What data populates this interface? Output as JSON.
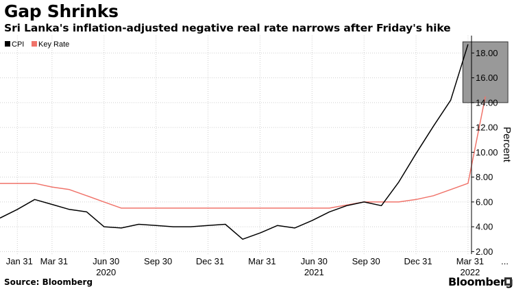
{
  "header": {
    "title": "Gap Shrinks",
    "subtitle": "Sri Lanka's inflation-adjusted negative real rate narrows after Friday's hike"
  },
  "footer": {
    "source": "Source: Bloomberg",
    "brand": "Bloomberg"
  },
  "colors": {
    "cpi": "#000000",
    "key_rate": "#f0736a",
    "highlight": "#999999"
  },
  "chart_data": {
    "type": "line",
    "title": "Gap Shrinks",
    "xlabel": "",
    "ylabel": "Percent",
    "ylim": [
      1.8,
      19.4
    ],
    "yticks": [
      "2.00",
      "4.00",
      "6.00",
      "8.00",
      "10.00",
      "12.00",
      "14.00",
      "16.00",
      "18.00"
    ],
    "ytick_values": [
      2,
      4,
      6,
      8,
      10,
      12,
      14,
      16,
      18
    ],
    "xlim": [
      0,
      27.2
    ],
    "x_ticks": [
      {
        "pos": 1,
        "label": "Jan 31",
        "year": ""
      },
      {
        "pos": 3,
        "label": "Mar 31",
        "year": ""
      },
      {
        "pos": 6,
        "label": "Jun 30",
        "year": "2020"
      },
      {
        "pos": 9,
        "label": "Sep 30",
        "year": ""
      },
      {
        "pos": 12,
        "label": "Dec 31",
        "year": ""
      },
      {
        "pos": 15,
        "label": "Mar 31",
        "year": ""
      },
      {
        "pos": 18,
        "label": "Jun 30",
        "year": "2021"
      },
      {
        "pos": 21,
        "label": "Sep 30",
        "year": ""
      },
      {
        "pos": 24,
        "label": "Dec 31",
        "year": ""
      },
      {
        "pos": 27,
        "label": "Mar 31",
        "year": "2022"
      },
      {
        "pos": 29,
        "label": "...",
        "year": ""
      }
    ],
    "legend": [
      "CPI",
      "Key Rate"
    ],
    "legend_position": "top-left",
    "series": [
      {
        "name": "CPI",
        "x": [
          0,
          1,
          2,
          3,
          4,
          5,
          6,
          7,
          8,
          9,
          10,
          11,
          12,
          13,
          14,
          15,
          16,
          17,
          18,
          19,
          20,
          21,
          22,
          23,
          24,
          25,
          26,
          27
        ],
        "values": [
          4.7,
          5.4,
          6.2,
          5.8,
          5.4,
          5.2,
          4.0,
          3.9,
          4.2,
          4.1,
          4.0,
          4.0,
          4.1,
          4.2,
          3.0,
          3.5,
          4.1,
          3.9,
          4.5,
          5.2,
          5.7,
          6.0,
          5.7,
          7.6,
          9.9,
          12.1,
          14.2,
          18.7
        ]
      },
      {
        "name": "Key Rate",
        "x": [
          0,
          1,
          2,
          3,
          4,
          5,
          6,
          7,
          8,
          9,
          10,
          11,
          12,
          13,
          14,
          15,
          16,
          17,
          18,
          19,
          20,
          21,
          22,
          23,
          24,
          25,
          26,
          27,
          28
        ],
        "values": [
          7.5,
          7.5,
          7.5,
          7.2,
          7.0,
          6.5,
          6.0,
          5.5,
          5.5,
          5.5,
          5.5,
          5.5,
          5.5,
          5.5,
          5.5,
          5.5,
          5.5,
          5.5,
          5.5,
          5.5,
          5.75,
          6.0,
          6.0,
          6.0,
          6.2,
          6.5,
          7.0,
          7.5,
          14.5
        ]
      }
    ],
    "highlight_box": {
      "x_range": [
        26.7,
        29.3
      ],
      "y_range": [
        14.0,
        18.9
      ]
    }
  }
}
